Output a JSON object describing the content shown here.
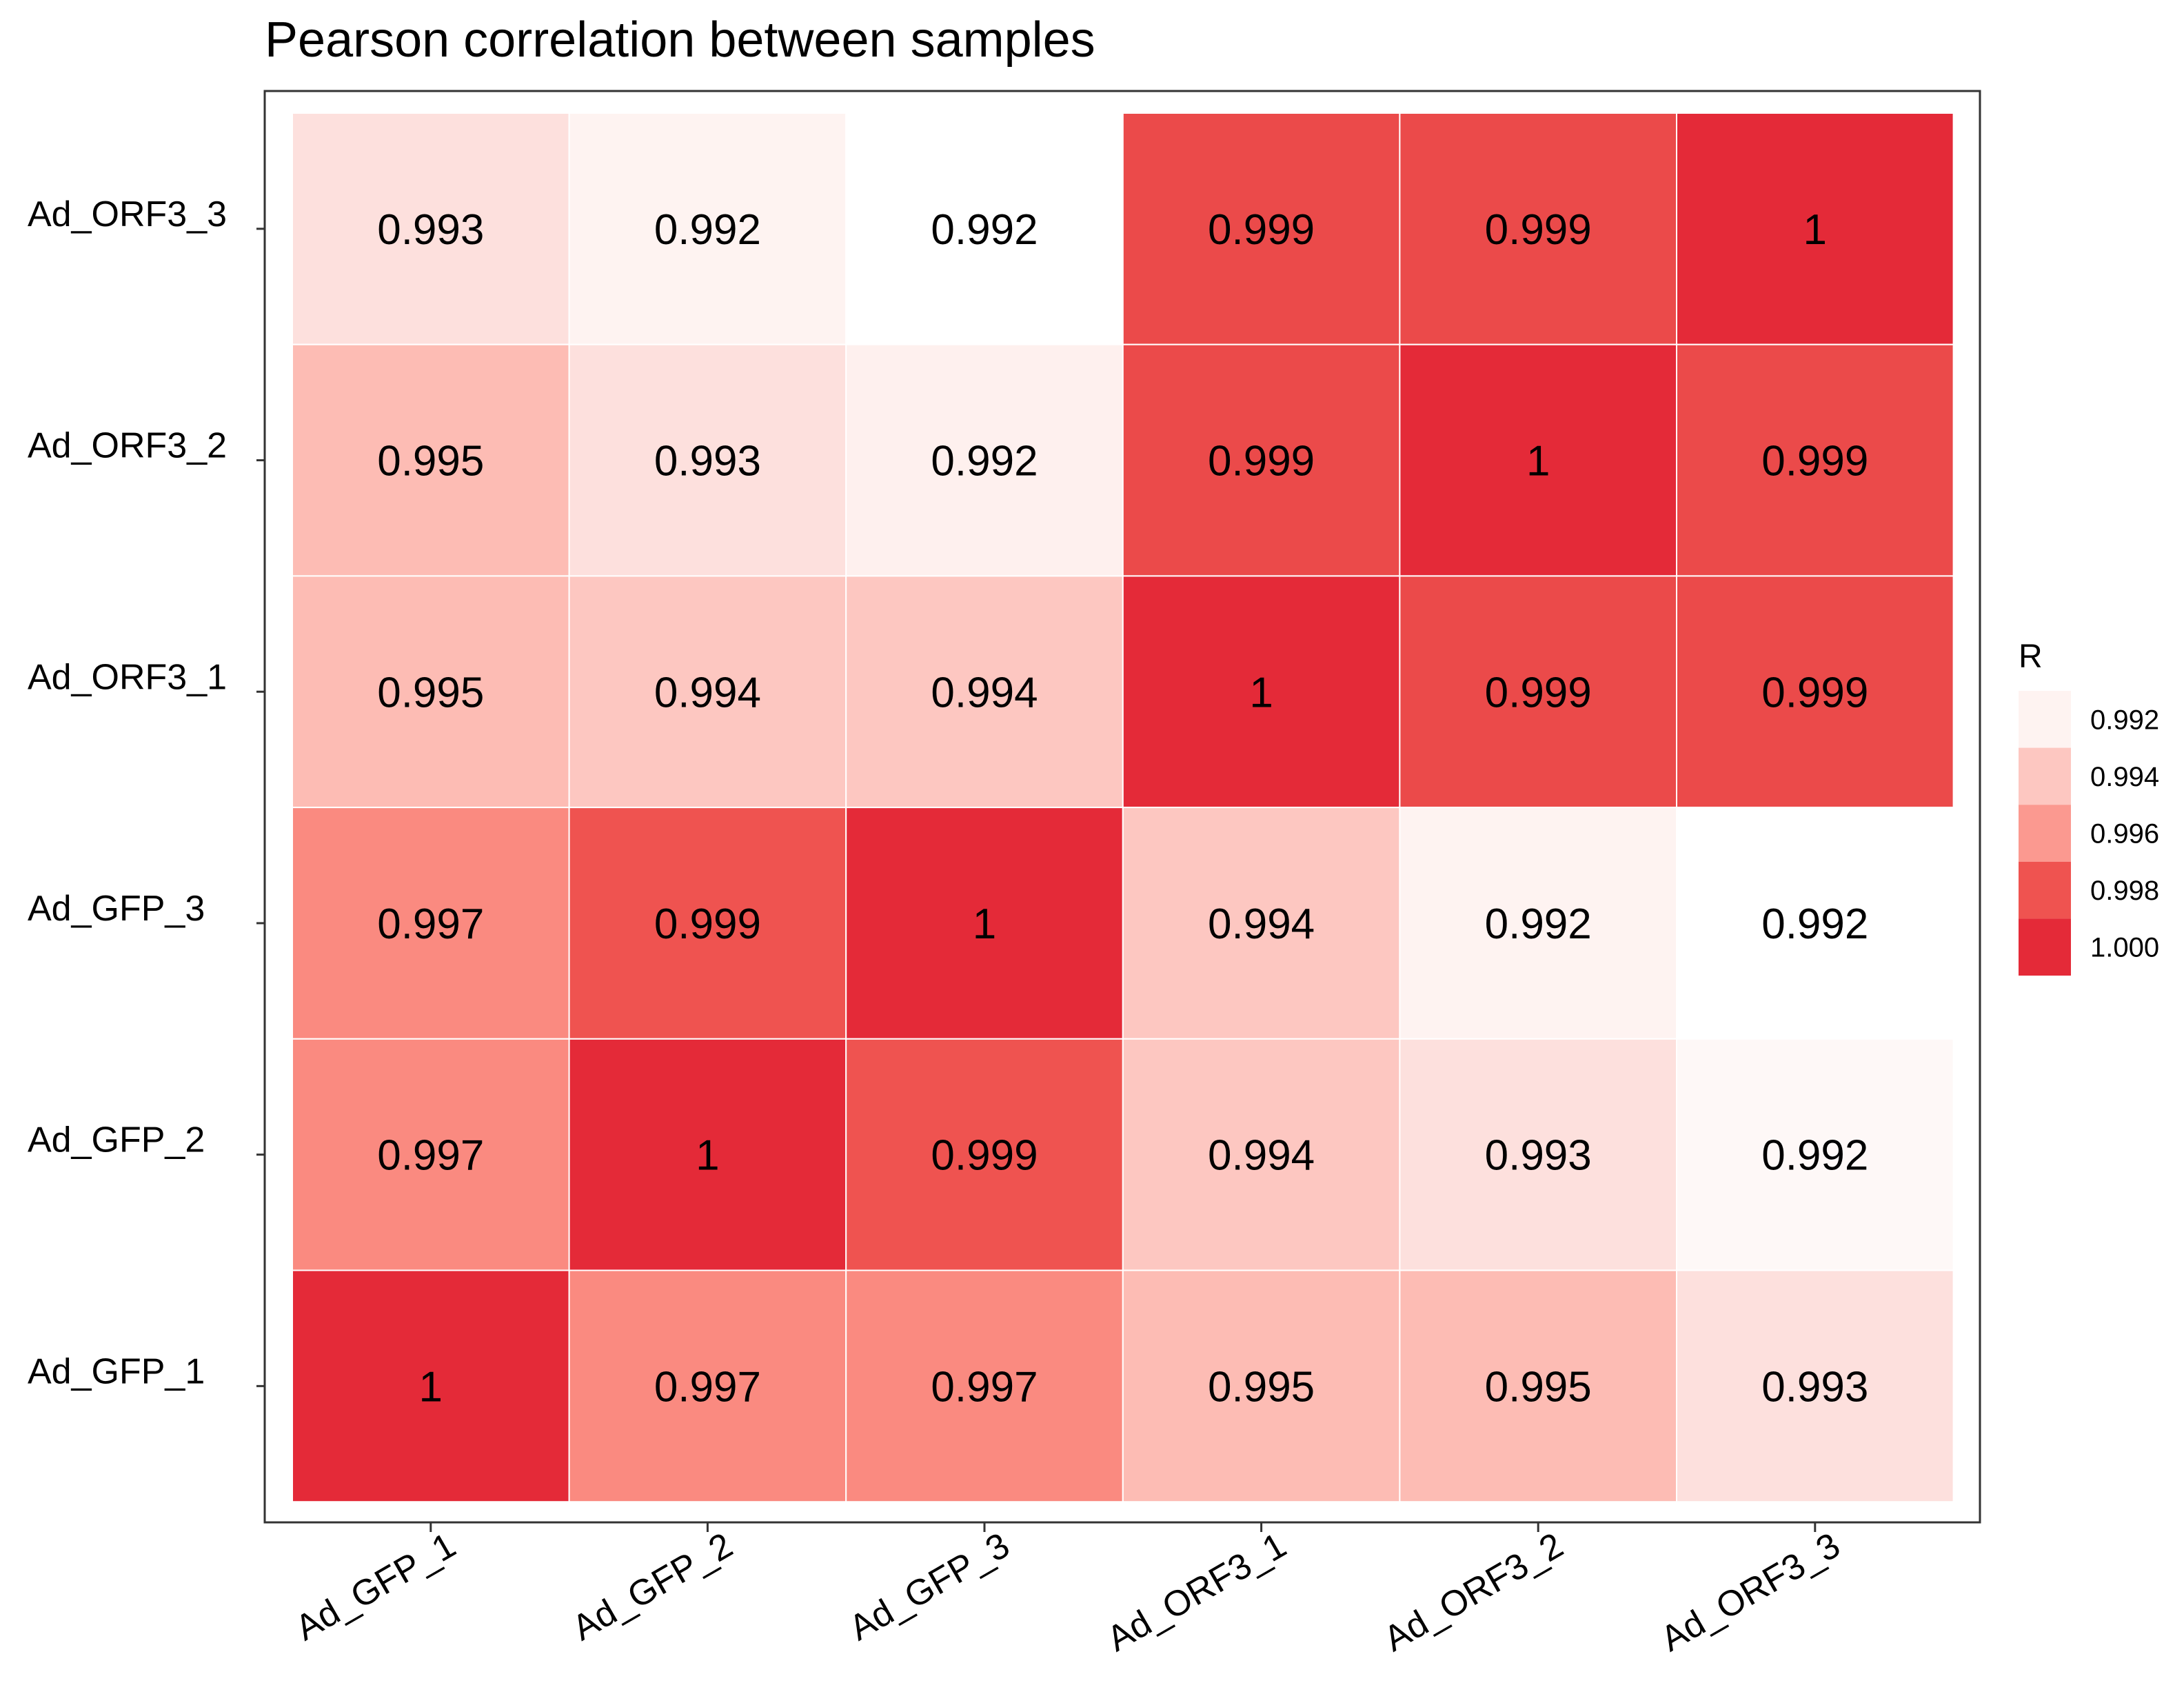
{
  "chart_data": {
    "type": "heatmap",
    "title": "Pearson correlation between samples",
    "xlabel": "",
    "ylabel": "",
    "x_categories": [
      "Ad_GFP_1",
      "Ad_GFP_2",
      "Ad_GFP_3",
      "Ad_ORF3_1",
      "Ad_ORF3_2",
      "Ad_ORF3_3"
    ],
    "y_categories": [
      "Ad_GFP_1",
      "Ad_GFP_2",
      "Ad_GFP_3",
      "Ad_ORF3_1",
      "Ad_ORF3_2",
      "Ad_ORF3_3"
    ],
    "cells": [
      {
        "y": "Ad_ORF3_3",
        "values": [
          0.993,
          0.992,
          0.992,
          0.999,
          0.999,
          1
        ],
        "labels": [
          "0.993",
          "0.992",
          "0.992",
          "0.999",
          "0.999",
          "1"
        ]
      },
      {
        "y": "Ad_ORF3_2",
        "values": [
          0.995,
          0.993,
          0.992,
          0.999,
          1,
          0.999
        ],
        "labels": [
          "0.995",
          "0.993",
          "0.992",
          "0.999",
          "1",
          "0.999"
        ]
      },
      {
        "y": "Ad_ORF3_1",
        "values": [
          0.995,
          0.994,
          0.994,
          1,
          0.999,
          0.999
        ],
        "labels": [
          "0.995",
          "0.994",
          "0.994",
          "1",
          "0.999",
          "0.999"
        ]
      },
      {
        "y": "Ad_GFP_3",
        "values": [
          0.997,
          0.999,
          1,
          0.994,
          0.992,
          0.992
        ],
        "labels": [
          "0.997",
          "0.999",
          "1",
          "0.994",
          "0.992",
          "0.992"
        ]
      },
      {
        "y": "Ad_GFP_2",
        "values": [
          0.997,
          1,
          0.999,
          0.994,
          0.993,
          0.992
        ],
        "labels": [
          "0.997",
          "1",
          "0.999",
          "0.994",
          "0.993",
          "0.992"
        ]
      },
      {
        "y": "Ad_GFP_1",
        "values": [
          1,
          0.997,
          0.997,
          0.995,
          0.995,
          0.993
        ],
        "labels": [
          "1",
          "0.997",
          "0.997",
          "0.995",
          "0.995",
          "0.993"
        ]
      }
    ],
    "cell_colors": [
      [
        "#fde0dd",
        "#fef3f1",
        "#ffffff",
        "#eb4a4a",
        "#eb4a4a",
        "#e42a38"
      ],
      [
        "#fdbcb4",
        "#fde0dd",
        "#fef0ee",
        "#eb4a4a",
        "#e42a38",
        "#eb4a4a"
      ],
      [
        "#fdbcb4",
        "#fdc7c1",
        "#fdc7c1",
        "#e42a38",
        "#eb4a4a",
        "#eb4a4a"
      ],
      [
        "#fa8a80",
        "#ef5350",
        "#e42a38",
        "#fdc7c1",
        "#fef3f1",
        "#ffffff"
      ],
      [
        "#fa8a80",
        "#e42a38",
        "#ef5350",
        "#fdc7c1",
        "#fde0dd",
        "#fef8f7"
      ],
      [
        "#e42a38",
        "#fa8a80",
        "#fa8a80",
        "#fdbcb4",
        "#fdbcb4",
        "#fde0dd"
      ]
    ],
    "value_range": [
      0.991,
      1.0
    ],
    "legend": {
      "title": "R",
      "position": "right",
      "labels": [
        "0.992",
        "0.994",
        "0.996",
        "0.998",
        "1.000"
      ],
      "colors": [
        "#fef3f1",
        "#fdc7c1",
        "#fb9990",
        "#ef5350",
        "#e42a38"
      ]
    },
    "grid": false
  }
}
